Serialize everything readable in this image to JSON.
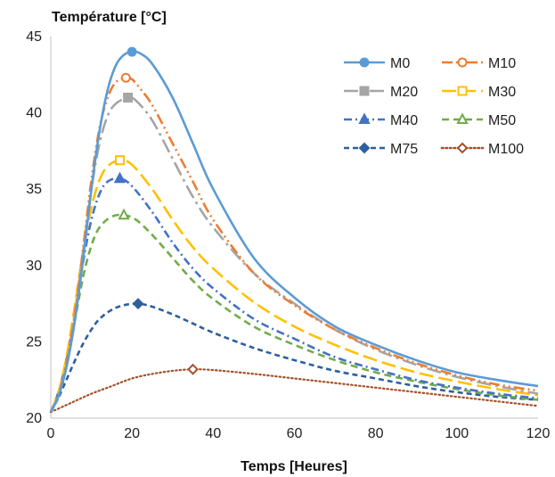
{
  "chart_data": {
    "type": "line",
    "ylabel": "Température [°C]",
    "xlabel": "Temps [Heures]",
    "xlim": [
      0,
      120
    ],
    "ylim": [
      20,
      45
    ],
    "xticks": [
      0,
      20,
      40,
      60,
      80,
      100,
      120
    ],
    "yticks": [
      20,
      25,
      30,
      35,
      40,
      45
    ],
    "grid": false,
    "legend": "top-right",
    "series": [
      {
        "name": "M0",
        "color": "#5B9BD5",
        "dash": "solid",
        "marker": "circle-filled",
        "peak": [
          20,
          44.0
        ],
        "points": [
          [
            0,
            20.4
          ],
          [
            2,
            21.5
          ],
          [
            4,
            23.5
          ],
          [
            6,
            26.5
          ],
          [
            8,
            30.5
          ],
          [
            10,
            35.0
          ],
          [
            12,
            38.8
          ],
          [
            14,
            41.5
          ],
          [
            16,
            43.1
          ],
          [
            18,
            43.8
          ],
          [
            20,
            44.0
          ],
          [
            22,
            43.9
          ],
          [
            25,
            43.2
          ],
          [
            30,
            41.0
          ],
          [
            35,
            38.0
          ],
          [
            40,
            35.0
          ],
          [
            50,
            30.5
          ],
          [
            60,
            27.9
          ],
          [
            70,
            26.0
          ],
          [
            80,
            24.8
          ],
          [
            90,
            23.8
          ],
          [
            100,
            23.0
          ],
          [
            110,
            22.5
          ],
          [
            120,
            22.1
          ]
        ]
      },
      {
        "name": "M10",
        "color": "#ED7D31",
        "dash": "dash-dot-dot",
        "marker": "circle-open",
        "peak": [
          18.5,
          42.3
        ],
        "points": [
          [
            0,
            20.4
          ],
          [
            2,
            21.6
          ],
          [
            4,
            23.8
          ],
          [
            6,
            27.0
          ],
          [
            8,
            31.2
          ],
          [
            10,
            35.6
          ],
          [
            12,
            39.0
          ],
          [
            14,
            41.0
          ],
          [
            16,
            42.0
          ],
          [
            18.5,
            42.3
          ],
          [
            20,
            42.2
          ],
          [
            22,
            41.6
          ],
          [
            25,
            40.5
          ],
          [
            30,
            38.0
          ],
          [
            35,
            35.5
          ],
          [
            40,
            33.0
          ],
          [
            50,
            29.5
          ],
          [
            60,
            27.4
          ],
          [
            70,
            25.8
          ],
          [
            80,
            24.6
          ],
          [
            90,
            23.6
          ],
          [
            100,
            22.8
          ],
          [
            110,
            22.2
          ],
          [
            120,
            21.8
          ]
        ]
      },
      {
        "name": "M20",
        "color": "#A5A5A5",
        "dash": "long-dash-dot",
        "marker": "square-filled",
        "peak": [
          19,
          41.0
        ],
        "points": [
          [
            0,
            20.4
          ],
          [
            2,
            21.6
          ],
          [
            4,
            23.8
          ],
          [
            6,
            27.0
          ],
          [
            8,
            31.0
          ],
          [
            10,
            35.0
          ],
          [
            12,
            38.0
          ],
          [
            14,
            39.8
          ],
          [
            16,
            40.6
          ],
          [
            19,
            41.0
          ],
          [
            21,
            40.8
          ],
          [
            25,
            39.5
          ],
          [
            30,
            37.0
          ],
          [
            35,
            34.5
          ],
          [
            40,
            32.5
          ],
          [
            50,
            29.5
          ],
          [
            60,
            27.5
          ],
          [
            70,
            25.8
          ],
          [
            80,
            24.5
          ],
          [
            90,
            23.5
          ],
          [
            100,
            22.7
          ],
          [
            110,
            22.1
          ],
          [
            120,
            21.6
          ]
        ]
      },
      {
        "name": "M30",
        "color": "#FFC000",
        "dash": "long-dash",
        "marker": "square-open",
        "peak": [
          17,
          36.9
        ],
        "points": [
          [
            0,
            20.4
          ],
          [
            2,
            21.8
          ],
          [
            4,
            24.2
          ],
          [
            6,
            27.5
          ],
          [
            8,
            31.0
          ],
          [
            10,
            33.8
          ],
          [
            12,
            35.6
          ],
          [
            14,
            36.5
          ],
          [
            17,
            36.9
          ],
          [
            20,
            36.6
          ],
          [
            25,
            35.0
          ],
          [
            30,
            33.0
          ],
          [
            35,
            31.2
          ],
          [
            40,
            29.8
          ],
          [
            50,
            27.6
          ],
          [
            60,
            26.0
          ],
          [
            70,
            24.8
          ],
          [
            80,
            23.8
          ],
          [
            90,
            23.0
          ],
          [
            100,
            22.4
          ],
          [
            110,
            21.9
          ],
          [
            120,
            21.5
          ]
        ]
      },
      {
        "name": "M40",
        "color": "#4472C4",
        "dash": "dash-dot",
        "marker": "triangle-filled",
        "peak": [
          17,
          35.7
        ],
        "points": [
          [
            0,
            20.4
          ],
          [
            2,
            21.8
          ],
          [
            4,
            24.0
          ],
          [
            6,
            27.0
          ],
          [
            8,
            30.3
          ],
          [
            10,
            33.0
          ],
          [
            12,
            34.7
          ],
          [
            14,
            35.5
          ],
          [
            17,
            35.7
          ],
          [
            20,
            35.2
          ],
          [
            25,
            33.5
          ],
          [
            30,
            31.5
          ],
          [
            35,
            29.8
          ],
          [
            40,
            28.5
          ],
          [
            50,
            26.5
          ],
          [
            60,
            25.2
          ],
          [
            70,
            24.0
          ],
          [
            80,
            23.2
          ],
          [
            90,
            22.5
          ],
          [
            100,
            22.0
          ],
          [
            110,
            21.6
          ],
          [
            120,
            21.3
          ]
        ]
      },
      {
        "name": "M50",
        "color": "#70AD47",
        "dash": "dash",
        "marker": "triangle-open",
        "peak": [
          18,
          33.3
        ],
        "points": [
          [
            0,
            20.4
          ],
          [
            2,
            21.8
          ],
          [
            4,
            23.8
          ],
          [
            6,
            26.5
          ],
          [
            8,
            29.3
          ],
          [
            10,
            31.3
          ],
          [
            12,
            32.5
          ],
          [
            15,
            33.2
          ],
          [
            18,
            33.3
          ],
          [
            21,
            33.0
          ],
          [
            25,
            32.0
          ],
          [
            30,
            30.5
          ],
          [
            35,
            29.0
          ],
          [
            40,
            27.8
          ],
          [
            50,
            26.0
          ],
          [
            60,
            24.8
          ],
          [
            70,
            23.8
          ],
          [
            80,
            23.0
          ],
          [
            90,
            22.4
          ],
          [
            100,
            21.9
          ],
          [
            110,
            21.5
          ],
          [
            120,
            21.2
          ]
        ]
      },
      {
        "name": "M75",
        "color": "#2E5F9E",
        "dash": "short-dash",
        "marker": "diamond-filled",
        "peak": [
          21.5,
          27.5
        ],
        "points": [
          [
            0,
            20.4
          ],
          [
            2,
            21.4
          ],
          [
            4,
            22.6
          ],
          [
            6,
            23.8
          ],
          [
            8,
            24.9
          ],
          [
            10,
            25.8
          ],
          [
            12,
            26.5
          ],
          [
            15,
            27.1
          ],
          [
            18,
            27.4
          ],
          [
            21.5,
            27.5
          ],
          [
            25,
            27.3
          ],
          [
            30,
            26.8
          ],
          [
            35,
            26.2
          ],
          [
            40,
            25.6
          ],
          [
            50,
            24.6
          ],
          [
            60,
            23.8
          ],
          [
            70,
            23.1
          ],
          [
            80,
            22.6
          ],
          [
            90,
            22.1
          ],
          [
            100,
            21.7
          ],
          [
            110,
            21.4
          ],
          [
            120,
            21.2
          ]
        ]
      },
      {
        "name": "M100",
        "color": "#A5512A",
        "dash": "dot",
        "marker": "diamond-open",
        "peak": [
          35,
          23.2
        ],
        "points": [
          [
            0,
            20.4
          ],
          [
            5,
            21.0
          ],
          [
            10,
            21.6
          ],
          [
            15,
            22.1
          ],
          [
            20,
            22.6
          ],
          [
            25,
            22.9
          ],
          [
            30,
            23.1
          ],
          [
            35,
            23.2
          ],
          [
            40,
            23.15
          ],
          [
            50,
            22.9
          ],
          [
            60,
            22.6
          ],
          [
            70,
            22.3
          ],
          [
            80,
            22.0
          ],
          [
            90,
            21.7
          ],
          [
            100,
            21.4
          ],
          [
            110,
            21.1
          ],
          [
            120,
            20.8
          ]
        ]
      }
    ]
  }
}
